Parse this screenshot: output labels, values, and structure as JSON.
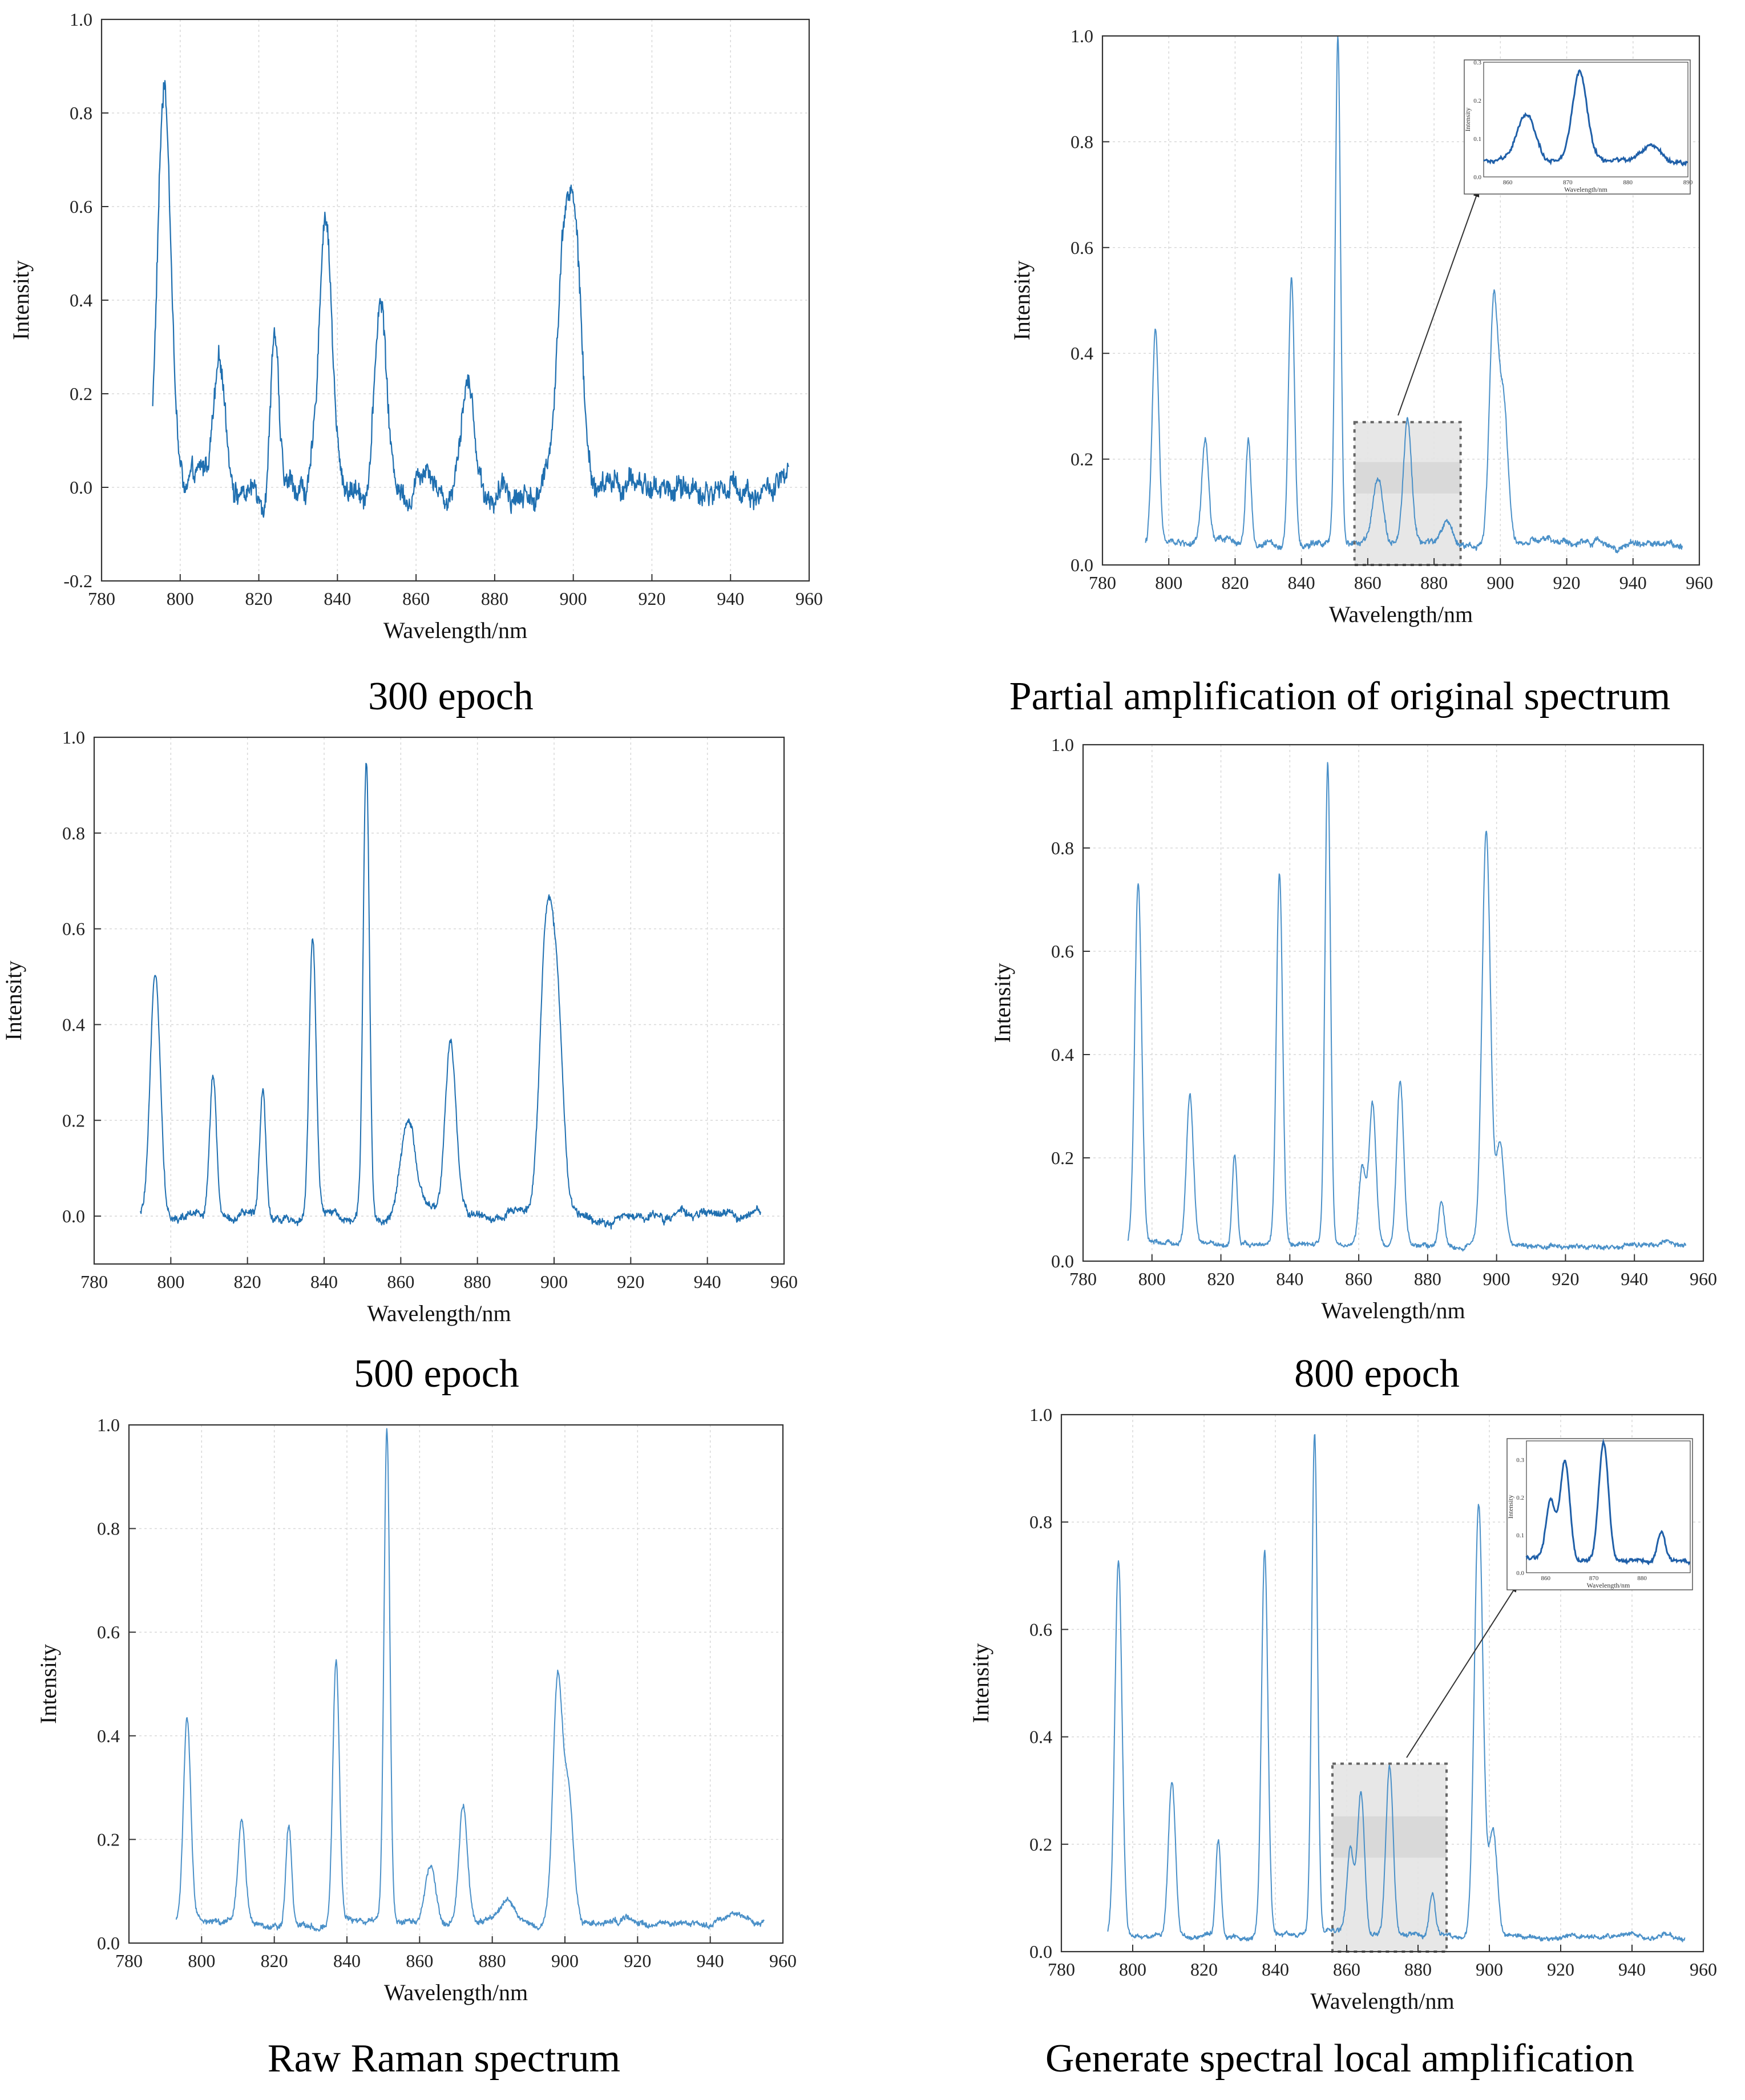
{
  "figure": {
    "captions": [
      "300 epoch",
      "Partial amplification of original spectrum",
      "500 epoch",
      "800 epoch",
      "Raw Raman spectrum",
      "Generate spectral local amplification"
    ]
  },
  "chart_data": [
    {
      "id": "p300",
      "type": "line",
      "title": "300 epoch",
      "xlabel": "Wavelength/nm",
      "ylabel": "Intensity",
      "xlim": [
        780,
        960
      ],
      "ylim": [
        -0.2,
        1.0
      ],
      "xticks": [
        "780",
        "800",
        "820",
        "840",
        "860",
        "880",
        "900",
        "920",
        "940",
        "960"
      ],
      "yticks": [
        "-0.2",
        "0.0",
        "0.2",
        "0.4",
        "0.6",
        "0.8",
        "1.0"
      ],
      "grid": true,
      "color": "#1f6fb0",
      "noise": 0.035,
      "baseline": 0.0,
      "x_range": [
        793,
        955
      ],
      "peaks": [
        [
          796,
          0.85,
          1.7
        ],
        [
          810,
          0.22,
          1.6
        ],
        [
          824,
          0.38,
          1.0
        ],
        [
          837,
          0.6,
          1.6
        ],
        [
          851,
          0.4,
          1.5
        ],
        [
          873,
          0.25,
          1.8
        ],
        [
          863,
          0.08,
          2.0
        ],
        [
          898,
          0.58,
          2.0
        ],
        [
          901,
          0.35,
          1.5
        ]
      ]
    },
    {
      "id": "porig",
      "type": "line",
      "title": "Partial amplification of original spectrum",
      "xlabel": "Wavelength/nm",
      "ylabel": "Intensity",
      "xlim": [
        780,
        960
      ],
      "ylim": [
        0.0,
        1.0
      ],
      "xticks": [
        "780",
        "800",
        "820",
        "840",
        "860",
        "880",
        "900",
        "920",
        "940",
        "960"
      ],
      "yticks": [
        "0.0",
        "0.2",
        "0.4",
        "0.6",
        "0.8",
        "1.0"
      ],
      "grid": true,
      "color": "#4a90c8",
      "noise": 0.008,
      "baseline": 0.04,
      "x_range": [
        793,
        955
      ],
      "peaks": [
        [
          796,
          0.4,
          1.0
        ],
        [
          811,
          0.19,
          1.0
        ],
        [
          824,
          0.2,
          0.8
        ],
        [
          837,
          0.51,
          0.9
        ],
        [
          851,
          0.95,
          0.8
        ],
        [
          863,
          0.11,
          1.5
        ],
        [
          872,
          0.23,
          1.2
        ],
        [
          884,
          0.04,
          1.5
        ],
        [
          898,
          0.46,
          1.3
        ],
        [
          901,
          0.25,
          1.3
        ]
      ],
      "zoom_box": {
        "x": [
          856,
          888
        ],
        "y": [
          0.0,
          0.27
        ]
      },
      "inset": {
        "xlabel": "Wavelength/nm",
        "ylabel": "Intensity",
        "xlim": [
          856,
          890
        ],
        "ylim": [
          0.0,
          0.3
        ],
        "xticks": [
          "860",
          "870",
          "880",
          "890"
        ],
        "yticks": [
          "0.0",
          "0.1",
          "0.2",
          "0.3"
        ]
      }
    },
    {
      "id": "p500",
      "type": "line",
      "title": "500 epoch",
      "xlabel": "Wavelength/nm",
      "ylabel": "Intensity",
      "xlim": [
        780,
        960
      ],
      "ylim": [
        -0.1,
        1.0
      ],
      "xticks": [
        "780",
        "800",
        "820",
        "840",
        "860",
        "880",
        "900",
        "920",
        "940",
        "960"
      ],
      "yticks": [
        "0.0",
        "0.2",
        "0.4",
        "0.6",
        "0.8",
        "1.0"
      ],
      "grid": true,
      "color": "#1f6fb0",
      "noise": 0.012,
      "baseline": 0.0,
      "x_range": [
        792,
        954
      ],
      "peaks": [
        [
          796,
          0.5,
          1.3
        ],
        [
          811,
          0.3,
          0.9
        ],
        [
          824,
          0.27,
          0.8
        ],
        [
          837,
          0.58,
          0.9
        ],
        [
          851,
          0.96,
          0.8
        ],
        [
          862,
          0.19,
          2.0
        ],
        [
          873,
          0.35,
          1.4
        ],
        [
          898,
          0.6,
          1.7
        ],
        [
          901,
          0.38,
          1.5
        ]
      ]
    },
    {
      "id": "p800",
      "type": "line",
      "title": "800 epoch",
      "xlabel": "Wavelength/nm",
      "ylabel": "Intensity",
      "xlim": [
        780,
        960
      ],
      "ylim": [
        0.0,
        1.0
      ],
      "xticks": [
        "780",
        "800",
        "820",
        "840",
        "860",
        "880",
        "900",
        "920",
        "940",
        "960"
      ],
      "yticks": [
        "0.0",
        "0.2",
        "0.4",
        "0.6",
        "0.8",
        "1.0"
      ],
      "grid": true,
      "color": "#4a90c8",
      "noise": 0.006,
      "baseline": 0.03,
      "x_range": [
        793,
        955
      ],
      "peaks": [
        [
          796,
          0.7,
          1.0
        ],
        [
          811,
          0.29,
          1.0
        ],
        [
          824,
          0.18,
          0.7
        ],
        [
          837,
          0.72,
          0.9
        ],
        [
          851,
          0.93,
          0.8
        ],
        [
          861,
          0.15,
          1.0
        ],
        [
          864,
          0.27,
          1.0
        ],
        [
          872,
          0.32,
          1.0
        ],
        [
          884,
          0.08,
          0.8
        ],
        [
          897,
          0.8,
          1.2
        ],
        [
          901,
          0.2,
          1.2
        ]
      ]
    },
    {
      "id": "praw",
      "type": "line",
      "title": "Raw Raman spectrum",
      "xlabel": "Wavelength/nm",
      "ylabel": "Intensity",
      "xlim": [
        780,
        960
      ],
      "ylim": [
        0.0,
        1.0
      ],
      "xticks": [
        "780",
        "800",
        "820",
        "840",
        "860",
        "880",
        "900",
        "920",
        "940",
        "960"
      ],
      "yticks": [
        "0.0",
        "0.2",
        "0.4",
        "0.6",
        "0.8",
        "1.0"
      ],
      "grid": true,
      "color": "#4a90c8",
      "noise": 0.008,
      "baseline": 0.04,
      "x_range": [
        793,
        955
      ],
      "peaks": [
        [
          796,
          0.4,
          1.0
        ],
        [
          811,
          0.19,
          1.0
        ],
        [
          824,
          0.2,
          0.8
        ],
        [
          837,
          0.51,
          0.9
        ],
        [
          851,
          0.95,
          0.8
        ],
        [
          863,
          0.11,
          1.5
        ],
        [
          872,
          0.23,
          1.2
        ],
        [
          884,
          0.04,
          1.5
        ],
        [
          898,
          0.46,
          1.3
        ],
        [
          901,
          0.25,
          1.3
        ]
      ]
    },
    {
      "id": "pgen",
      "type": "line",
      "title": "Generate spectral local amplification",
      "xlabel": "Wavelength/nm",
      "ylabel": "Intensity",
      "xlim": [
        780,
        960
      ],
      "ylim": [
        0.0,
        1.0
      ],
      "xticks": [
        "780",
        "800",
        "820",
        "840",
        "860",
        "880",
        "900",
        "920",
        "940",
        "960"
      ],
      "yticks": [
        "0.0",
        "0.2",
        "0.4",
        "0.6",
        "0.8",
        "1.0"
      ],
      "grid": true,
      "color": "#4a90c8",
      "noise": 0.006,
      "baseline": 0.03,
      "x_range": [
        793,
        955
      ],
      "peaks": [
        [
          796,
          0.7,
          1.0
        ],
        [
          811,
          0.29,
          1.0
        ],
        [
          824,
          0.18,
          0.7
        ],
        [
          837,
          0.72,
          0.9
        ],
        [
          851,
          0.93,
          0.8
        ],
        [
          861,
          0.15,
          1.0
        ],
        [
          864,
          0.27,
          1.0
        ],
        [
          872,
          0.32,
          1.0
        ],
        [
          884,
          0.08,
          0.8
        ],
        [
          897,
          0.8,
          1.2
        ],
        [
          901,
          0.2,
          1.2
        ]
      ],
      "zoom_box": {
        "x": [
          856,
          888
        ],
        "y": [
          0.0,
          0.35
        ]
      },
      "inset": {
        "xlabel": "Wavelength/nm",
        "ylabel": "Intensity",
        "xlim": [
          856,
          890
        ],
        "ylim": [
          0.0,
          0.35
        ],
        "xticks": [
          "860",
          "870",
          "880"
        ],
        "yticks": [
          "0.0",
          "0.1",
          "0.2",
          "0.3"
        ]
      }
    }
  ]
}
